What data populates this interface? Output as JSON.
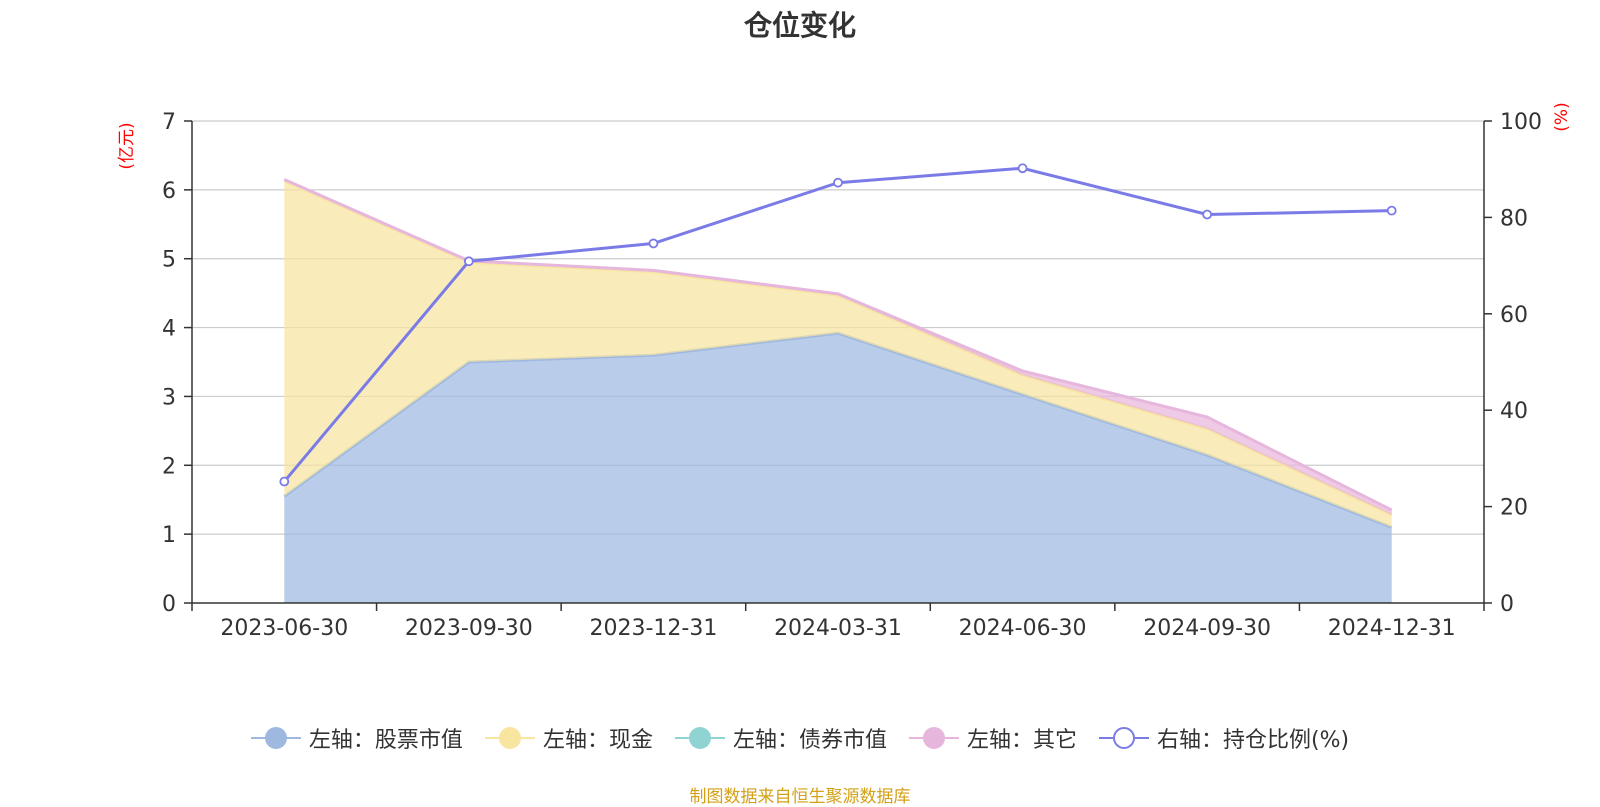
{
  "chart_data": {
    "type": "area",
    "title": "仓位变化",
    "categories": [
      "2023-06-30",
      "2023-09-30",
      "2023-12-31",
      "2024-03-31",
      "2024-06-30",
      "2024-09-30",
      "2024-12-31"
    ],
    "left_axis": {
      "unit": "(亿元)",
      "range": [
        0,
        7
      ],
      "ticks": [
        "0",
        "1",
        "2",
        "3",
        "4",
        "5",
        "6",
        "7"
      ]
    },
    "right_axis": {
      "unit": "(%)",
      "range": [
        0,
        100
      ],
      "ticks": [
        "0",
        "20",
        "40",
        "60",
        "80",
        "100"
      ]
    },
    "series": [
      {
        "name": "左轴：股票市值",
        "axis": "left",
        "stacked": true,
        "color": "#9eb8e0",
        "values": [
          1.55,
          3.5,
          3.6,
          3.92,
          3.03,
          2.15,
          1.1
        ]
      },
      {
        "name": "左轴：现金",
        "axis": "left",
        "stacked": true,
        "color": "#f7e5a0",
        "values": [
          4.58,
          1.45,
          1.21,
          0.55,
          0.28,
          0.38,
          0.18
        ]
      },
      {
        "name": "左轴：债券市值",
        "axis": "left",
        "stacked": true,
        "color": "#8fd3d3",
        "values": [
          0,
          0,
          0,
          0,
          0,
          0,
          0
        ]
      },
      {
        "name": "左轴：其它",
        "axis": "left",
        "stacked": true,
        "color": "#e7b6dc",
        "values": [
          0.02,
          0.02,
          0.02,
          0.02,
          0.06,
          0.17,
          0.07
        ]
      },
      {
        "name": "右轴：持仓比例(%)",
        "axis": "right",
        "stacked": false,
        "color": "#7b7be8",
        "values": [
          25.2,
          70.9,
          74.6,
          87.2,
          90.2,
          80.6,
          81.4
        ]
      }
    ],
    "grid": true,
    "legend_position": "bottom-center"
  },
  "source_note": "制图数据来自恒生聚源数据库"
}
